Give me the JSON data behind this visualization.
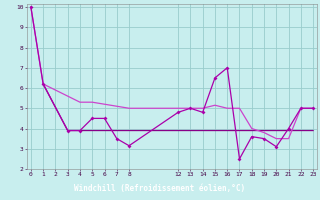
{
  "xlabel": "Windchill (Refroidissement éolien,°C)",
  "bg_color": "#c8eeee",
  "plot_bg": "#c8eeee",
  "label_bg": "#660066",
  "label_fg": "#ffffff",
  "line_color1": "#aa00aa",
  "line_color2": "#cc44cc",
  "line_color3": "#880088",
  "grid_color": "#99cccc",
  "tick_color": "#440044",
  "yticks": [
    2,
    3,
    4,
    5,
    6,
    7,
    8,
    9,
    10
  ],
  "xticks": [
    0,
    1,
    2,
    3,
    4,
    5,
    6,
    7,
    8,
    12,
    13,
    14,
    15,
    16,
    17,
    18,
    19,
    20,
    21,
    22,
    23
  ],
  "xlim_min": -0.3,
  "xlim_max": 23.3,
  "ylim_min": 2,
  "ylim_max": 10.15,
  "s1_x": [
    0,
    1,
    3,
    4,
    5,
    6,
    7,
    8,
    12,
    13,
    14,
    15,
    16,
    17,
    18,
    19,
    20,
    21,
    22,
    23
  ],
  "s1_y": [
    10.0,
    6.2,
    3.9,
    3.9,
    4.5,
    4.5,
    3.5,
    3.15,
    4.8,
    5.0,
    4.8,
    6.5,
    7.0,
    2.5,
    3.6,
    3.5,
    3.1,
    4.0,
    5.0,
    5.0
  ],
  "s2_x": [
    0,
    1,
    3,
    4,
    5,
    6,
    7,
    8,
    12,
    13,
    14,
    15,
    16,
    17,
    18,
    19,
    20,
    21,
    22,
    23
  ],
  "s2_y": [
    10.0,
    6.2,
    5.6,
    5.3,
    5.3,
    5.2,
    5.1,
    5.0,
    5.0,
    5.0,
    5.0,
    5.15,
    5.0,
    5.0,
    4.0,
    3.8,
    3.5,
    3.5,
    5.0,
    5.0
  ],
  "s3_x": [
    1,
    3,
    4,
    5,
    6,
    7,
    8,
    12,
    13,
    14,
    15,
    16,
    17,
    18,
    19,
    20,
    21,
    22,
    23
  ],
  "s3_y": [
    6.2,
    3.9,
    3.9,
    3.9,
    3.9,
    3.9,
    3.9,
    3.9,
    3.9,
    3.9,
    3.9,
    3.9,
    3.9,
    3.9,
    3.9,
    3.9,
    3.9,
    3.9,
    3.9
  ]
}
